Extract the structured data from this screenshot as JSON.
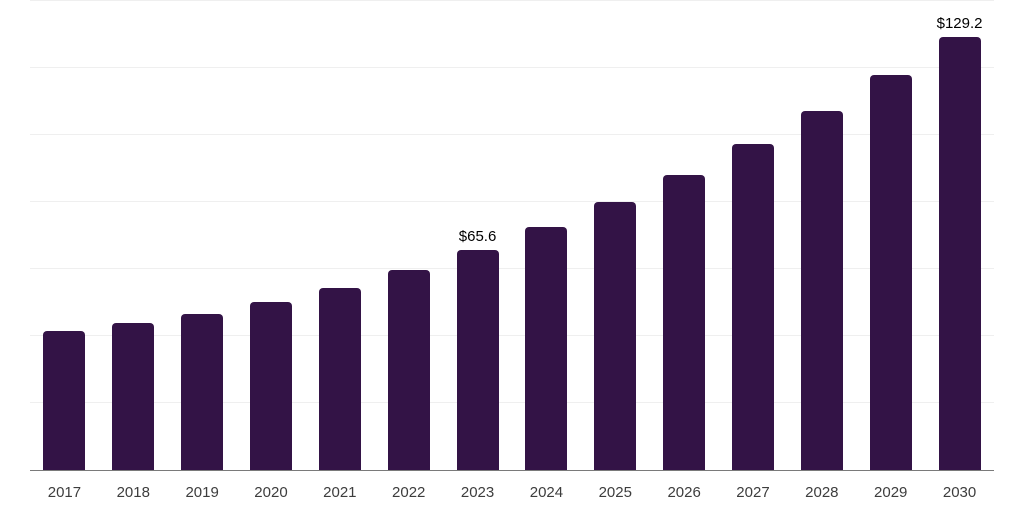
{
  "chart_data": {
    "type": "bar",
    "title": "",
    "xlabel": "",
    "ylabel": "",
    "categories": [
      "2017",
      "2018",
      "2019",
      "2020",
      "2021",
      "2022",
      "2023",
      "2024",
      "2025",
      "2026",
      "2027",
      "2028",
      "2029",
      "2030"
    ],
    "values": [
      41.5,
      44.0,
      46.7,
      50.3,
      54.4,
      59.6,
      65.6,
      72.5,
      80.0,
      88.2,
      97.4,
      107.2,
      117.9,
      129.2
    ],
    "annotations": [
      {
        "category": "2023",
        "text": "$65.6"
      },
      {
        "category": "2030",
        "text": "$129.2"
      }
    ],
    "ylim": [
      0,
      140
    ],
    "grid_step": 20,
    "grid": true,
    "legend": "none",
    "y_axis_labels_visible": false,
    "bar_color": "#331346",
    "gridline_color": "#efefef",
    "axis_line_color": "#7a7a7a",
    "tick_label_color": "#3d3d3d",
    "data_label_color": "#000000"
  }
}
